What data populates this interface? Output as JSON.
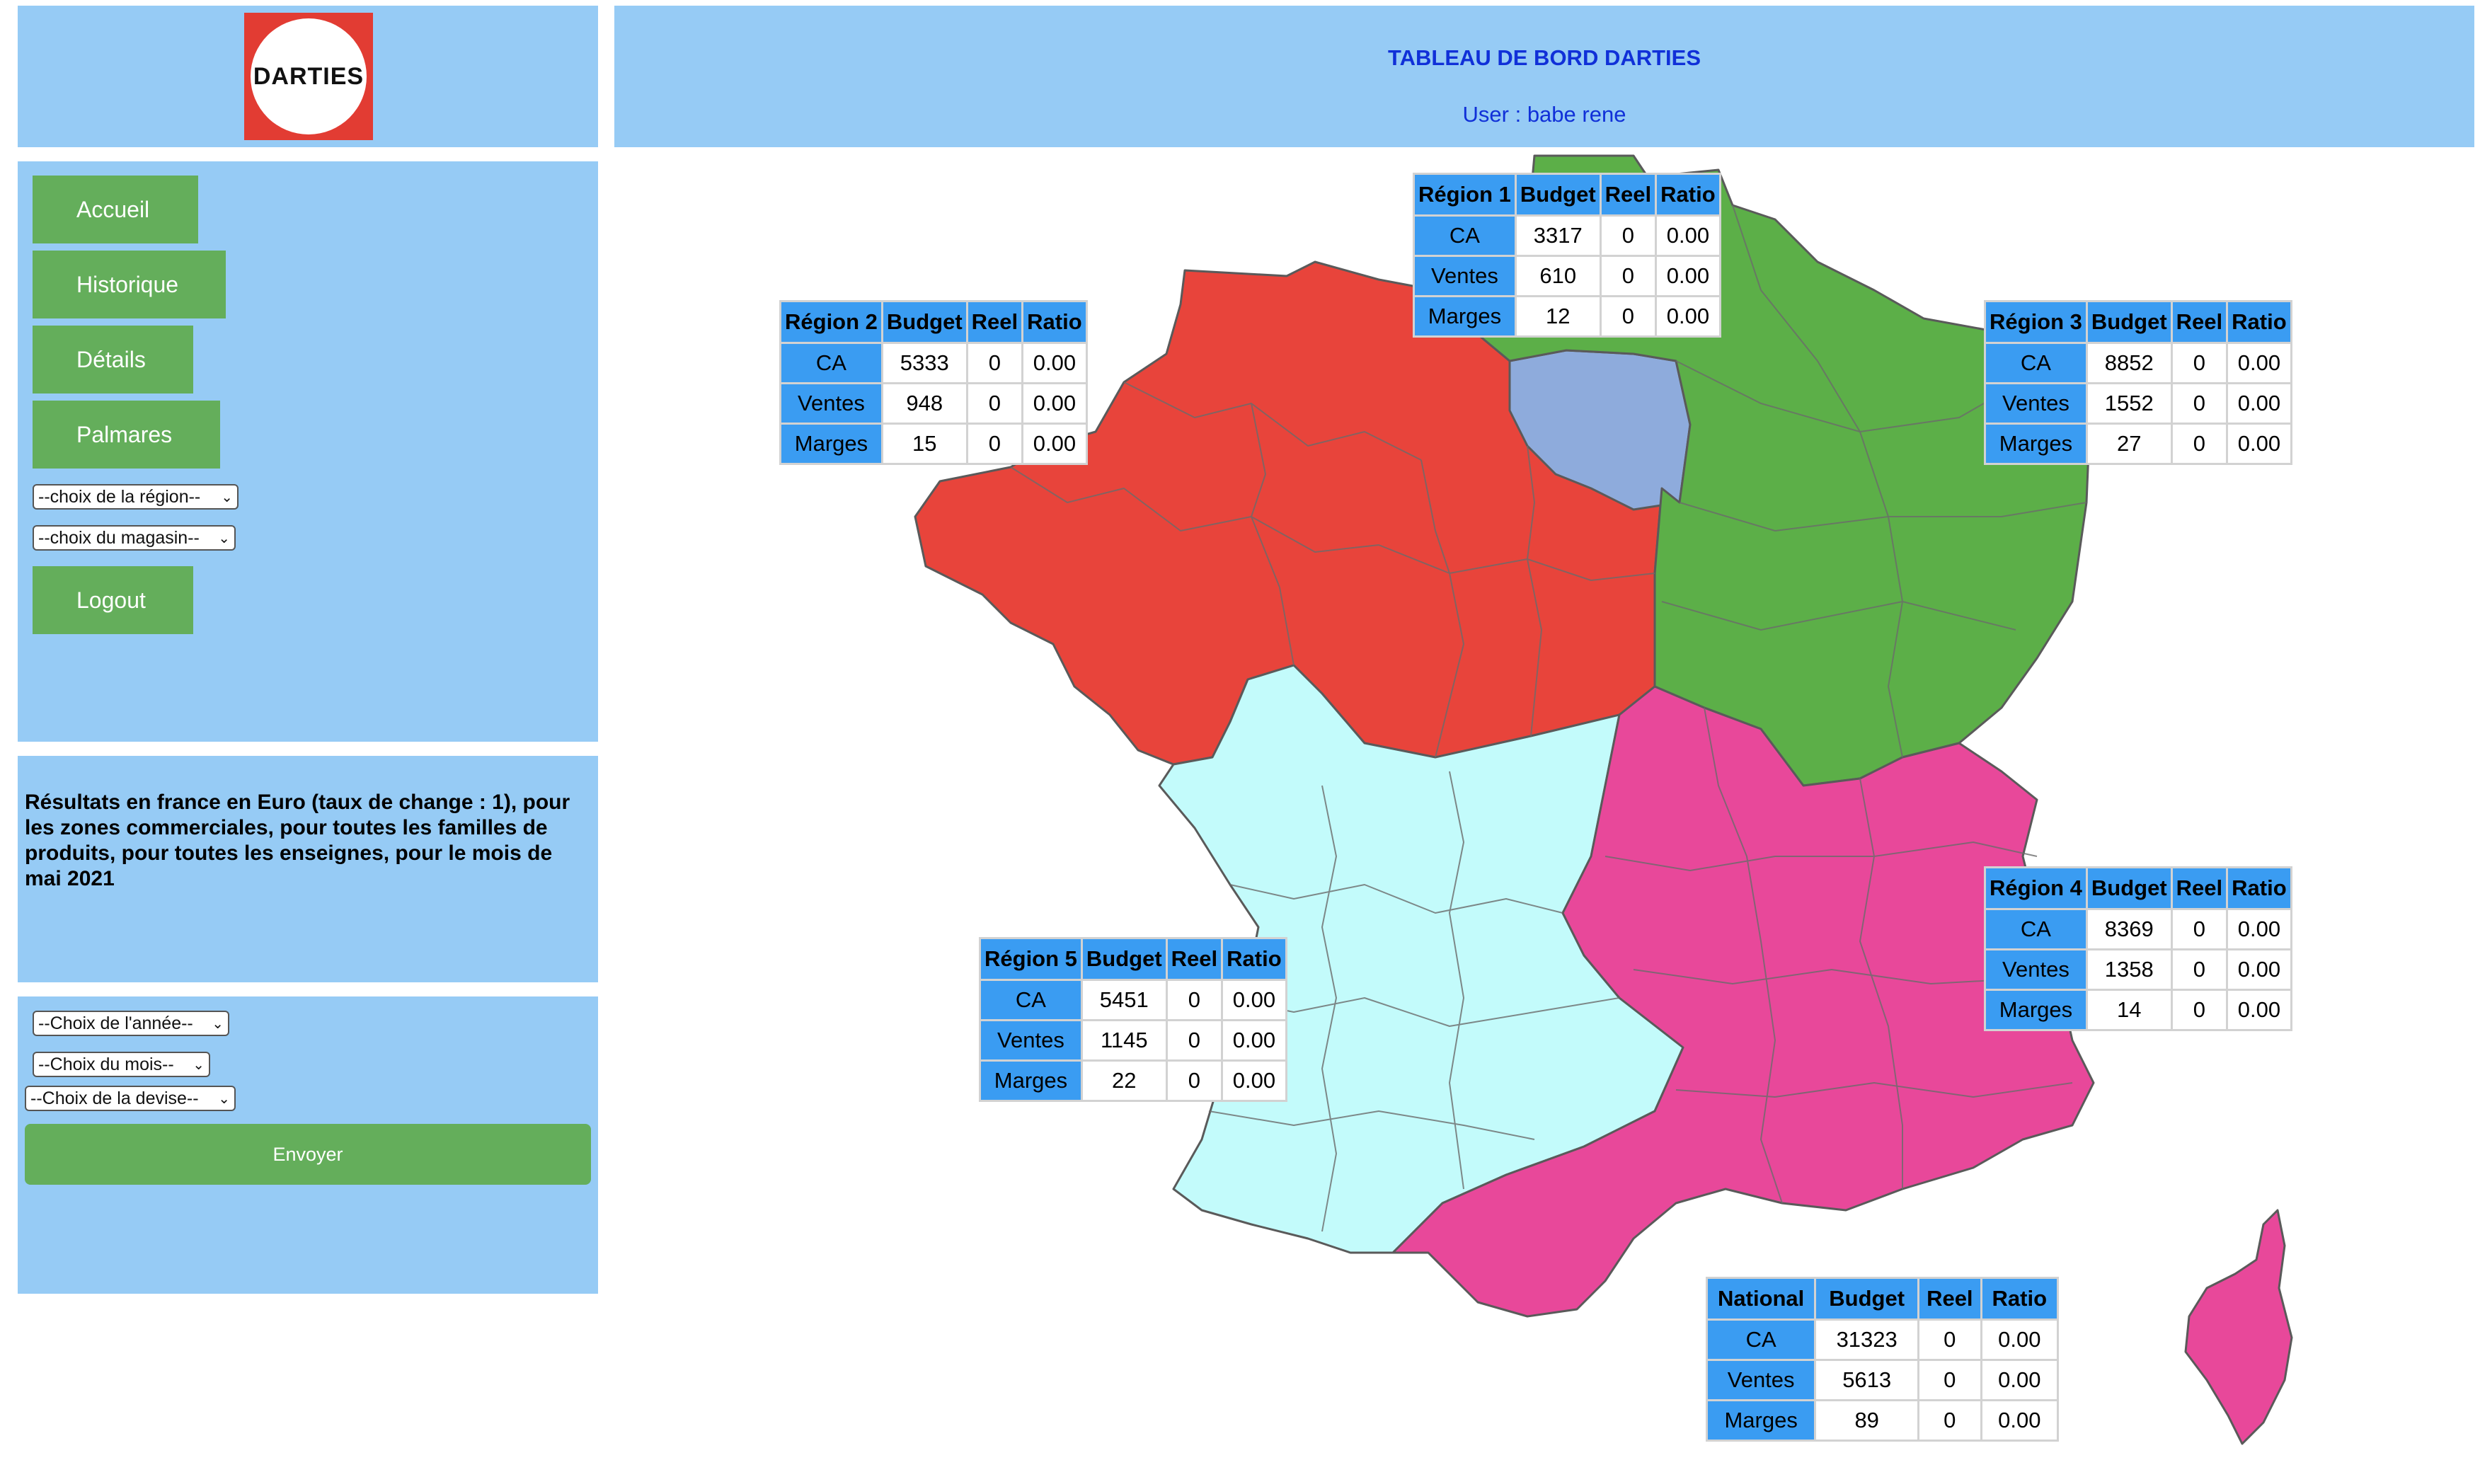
{
  "logo": {
    "text": "DARTIES"
  },
  "header": {
    "title": "TABLEAU DE BORD DARTIES",
    "user": "User : babe rene"
  },
  "nav": {
    "accueil": "Accueil",
    "historique": "Historique",
    "details": "Détails",
    "palmares": "Palmares",
    "region_select": "--choix de la région--",
    "magasin_select": "--choix du magasin--",
    "logout": "Logout"
  },
  "info": {
    "text": "Résultats en france en Euro (taux de change : 1), pour les zones commerciales, pour toutes les familles de produits, pour toutes les enseignes, pour le mois de mai 2021"
  },
  "form": {
    "annee_select": "--Choix de l'année--",
    "mois_select": "--Choix du mois--",
    "devise_select": "--Choix de la devise--",
    "send": "Envoyer"
  },
  "colors": {
    "panel": "#96cbf5",
    "button": "#64ae5b",
    "header_text": "#1030d8",
    "table_header": "#3a9cf2",
    "region_red": "#e8443b",
    "region_green": "#5caf48",
    "region_pink": "#e8489a",
    "region_cyan": "#c3fbfb",
    "region_blue": "#8eabdc"
  },
  "tables": {
    "region1": {
      "head": [
        "Région 1",
        "Budget",
        "Reel",
        "Ratio"
      ],
      "rows": [
        [
          "CA",
          "3317",
          "0",
          "0.00"
        ],
        [
          "Ventes",
          "610",
          "0",
          "0.00"
        ],
        [
          "Marges",
          "12",
          "0",
          "0.00"
        ]
      ]
    },
    "region2": {
      "head": [
        "Région 2",
        "Budget",
        "Reel",
        "Ratio"
      ],
      "rows": [
        [
          "CA",
          "5333",
          "0",
          "0.00"
        ],
        [
          "Ventes",
          "948",
          "0",
          "0.00"
        ],
        [
          "Marges",
          "15",
          "0",
          "0.00"
        ]
      ]
    },
    "region3": {
      "head": [
        "Région 3",
        "Budget",
        "Reel",
        "Ratio"
      ],
      "rows": [
        [
          "CA",
          "8852",
          "0",
          "0.00"
        ],
        [
          "Ventes",
          "1552",
          "0",
          "0.00"
        ],
        [
          "Marges",
          "27",
          "0",
          "0.00"
        ]
      ]
    },
    "region4": {
      "head": [
        "Région 4",
        "Budget",
        "Reel",
        "Ratio"
      ],
      "rows": [
        [
          "CA",
          "8369",
          "0",
          "0.00"
        ],
        [
          "Ventes",
          "1358",
          "0",
          "0.00"
        ],
        [
          "Marges",
          "14",
          "0",
          "0.00"
        ]
      ]
    },
    "region5": {
      "head": [
        "Région 5",
        "Budget",
        "Reel",
        "Ratio"
      ],
      "rows": [
        [
          "CA",
          "5451",
          "0",
          "0.00"
        ],
        [
          "Ventes",
          "1145",
          "0",
          "0.00"
        ],
        [
          "Marges",
          "22",
          "0",
          "0.00"
        ]
      ]
    },
    "national": {
      "head": [
        "National",
        "Budget",
        "Reel",
        "Ratio"
      ],
      "rows": [
        [
          "CA",
          "31323",
          "0",
          "0.00"
        ],
        [
          "Ventes",
          "5613",
          "0",
          "0.00"
        ],
        [
          "Marges",
          "89",
          "0",
          "0.00"
        ]
      ]
    }
  }
}
